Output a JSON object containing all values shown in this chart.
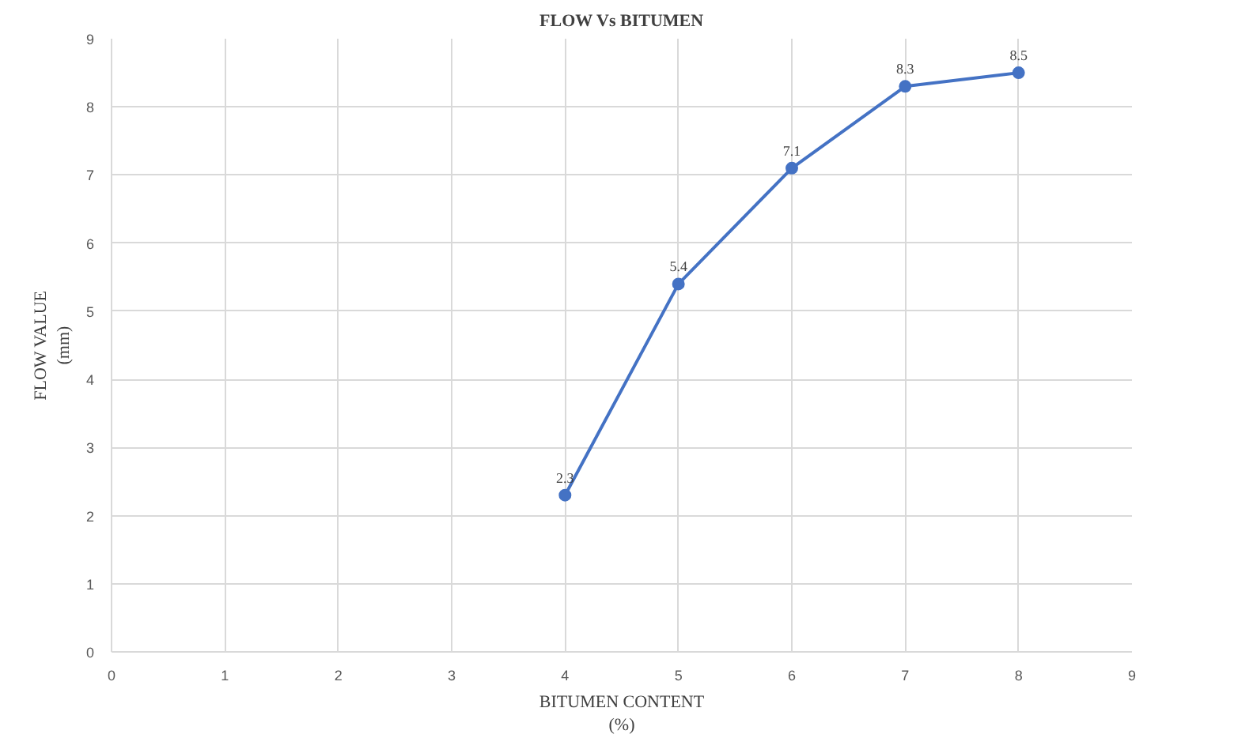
{
  "chart_data": {
    "type": "line",
    "title": "FLOW Vs BITUMEN",
    "xlabel": "BITUMEN CONTENT\n(%)",
    "ylabel": "FLOW VALUE\n(mm)",
    "x": [
      4,
      5,
      6,
      7,
      8
    ],
    "series": [
      {
        "color": "#4472c4",
        "values": [
          2.3,
          5.4,
          7.1,
          8.3,
          8.5
        ]
      }
    ],
    "xlim": [
      0,
      9
    ],
    "ylim": [
      0,
      9
    ],
    "xticks": [
      0,
      1,
      2,
      3,
      4,
      5,
      6,
      7,
      8,
      9
    ],
    "yticks": [
      0,
      1,
      2,
      3,
      4,
      5,
      6,
      7,
      8,
      9
    ],
    "grid": true,
    "marker": "circle",
    "line_style": "solid",
    "data_labels": true
  }
}
